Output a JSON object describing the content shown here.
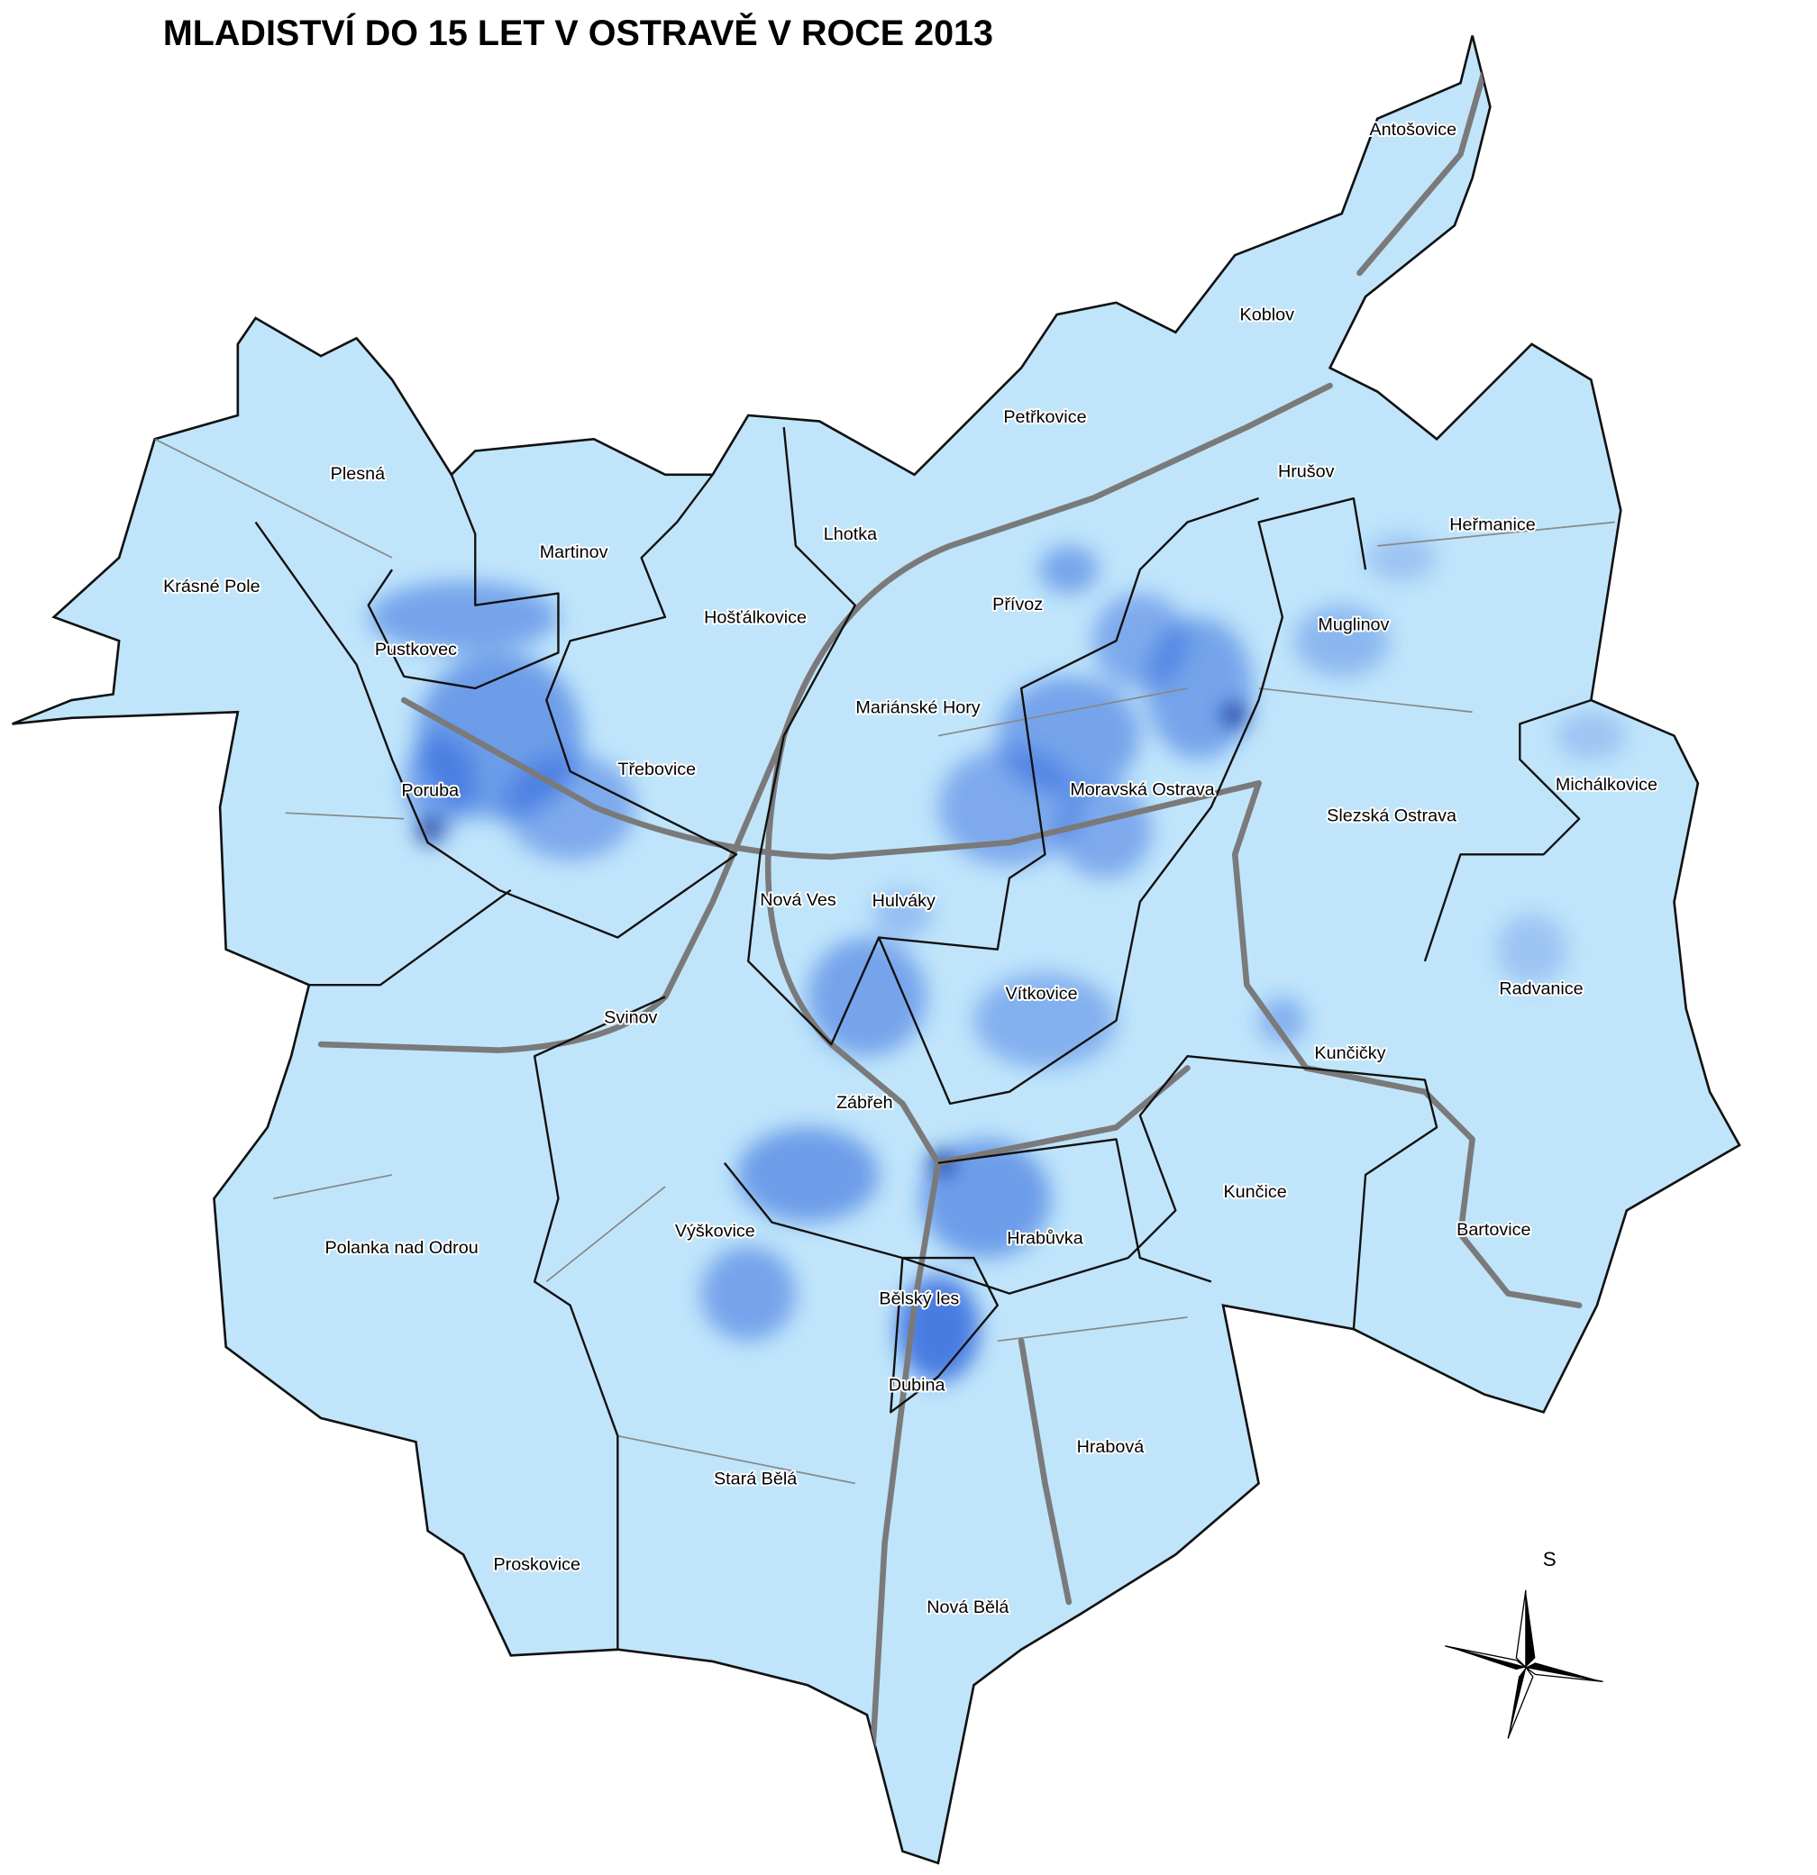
{
  "title": "MLADISTVÍ DO 15 LET V OSTRAVĚ V ROCE 2013",
  "districts": [
    {
      "label": "Antošovice"
    },
    {
      "label": "Koblov"
    },
    {
      "label": "Petřkovice"
    },
    {
      "label": "Hrušov"
    },
    {
      "label": "Plesná"
    },
    {
      "label": "Heřmanice"
    },
    {
      "label": "Lhotka"
    },
    {
      "label": "Martinov"
    },
    {
      "label": "Krásné Pole"
    },
    {
      "label": "Přívoz"
    },
    {
      "label": "Hošťálkovice"
    },
    {
      "label": "Muglinov"
    },
    {
      "label": "Pustkovec"
    },
    {
      "label": "Mariánské Hory"
    },
    {
      "label": "Třebovice"
    },
    {
      "label": "Michálkovice"
    },
    {
      "label": "Poruba"
    },
    {
      "label": "Moravská Ostrava"
    },
    {
      "label": "Slezská Ostrava"
    },
    {
      "label": "Nová Ves"
    },
    {
      "label": "Hulváky"
    },
    {
      "label": "Radvanice"
    },
    {
      "label": "Vítkovice"
    },
    {
      "label": "Svinov"
    },
    {
      "label": "Kunčičky"
    },
    {
      "label": "Zábřeh"
    },
    {
      "label": "Kunčice"
    },
    {
      "label": "Výškovice"
    },
    {
      "label": "Bartovice"
    },
    {
      "label": "Polanka nad Odrou"
    },
    {
      "label": "Hrabůvka"
    },
    {
      "label": "Bělský les"
    },
    {
      "label": "Dubina"
    },
    {
      "label": "Hrabová"
    },
    {
      "label": "Stará Bělá"
    },
    {
      "label": "Proskovice"
    },
    {
      "label": "Nová Bělá"
    }
  ],
  "compass": {
    "label": "S"
  }
}
